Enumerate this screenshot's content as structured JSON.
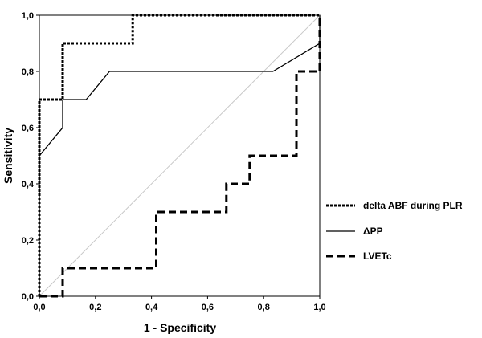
{
  "chart_data": {
    "type": "line",
    "xlabel": "1 - Specificity",
    "ylabel": "Sensitivity",
    "xlim": [
      0,
      1
    ],
    "ylim": [
      0,
      1
    ],
    "x_ticks": [
      "0,0",
      "0,2",
      "0,4",
      "0,6",
      "0,8",
      "1,0"
    ],
    "y_ticks": [
      "0,0",
      "0,2",
      "0,4",
      "0,6",
      "0,8",
      "1,0"
    ],
    "grid": false,
    "legend_position": "right",
    "series": [
      {
        "name": "delta ABF during PLR",
        "style": "dotted",
        "color": "#000000",
        "points": [
          [
            0,
            0
          ],
          [
            0,
            0.7
          ],
          [
            0.083,
            0.7
          ],
          [
            0.083,
            0.9
          ],
          [
            0.333,
            0.9
          ],
          [
            0.333,
            1.0
          ],
          [
            1.0,
            1.0
          ]
        ]
      },
      {
        "name": "ΔPP",
        "style": "solid",
        "color": "#000000",
        "points": [
          [
            0,
            0
          ],
          [
            0,
            0.5
          ],
          [
            0.083,
            0.6
          ],
          [
            0.083,
            0.7
          ],
          [
            0.167,
            0.7
          ],
          [
            0.25,
            0.8
          ],
          [
            0.833,
            0.8
          ],
          [
            1.0,
            0.9
          ],
          [
            1.0,
            1.0
          ]
        ]
      },
      {
        "name": "LVETc",
        "style": "dashed",
        "color": "#000000",
        "points": [
          [
            0,
            0
          ],
          [
            0.083,
            0
          ],
          [
            0.083,
            0.1
          ],
          [
            0.417,
            0.1
          ],
          [
            0.417,
            0.3
          ],
          [
            0.667,
            0.3
          ],
          [
            0.667,
            0.4
          ],
          [
            0.75,
            0.4
          ],
          [
            0.75,
            0.5
          ],
          [
            0.917,
            0.5
          ],
          [
            0.917,
            0.8
          ],
          [
            1.0,
            0.8
          ],
          [
            1.0,
            1.0
          ]
        ]
      }
    ]
  },
  "reference_line": {
    "color": "#c8c8c8"
  }
}
